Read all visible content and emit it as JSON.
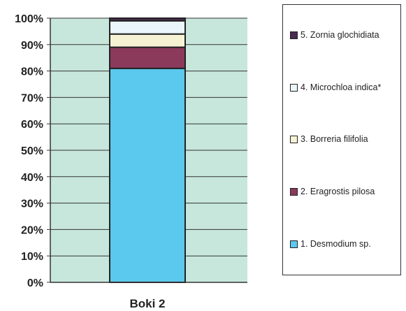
{
  "chart_data": {
    "type": "bar",
    "stacked": true,
    "categories": [
      "Boki 2"
    ],
    "yticks": [
      "0%",
      "10%",
      "20%",
      "30%",
      "40%",
      "50%",
      "60%",
      "70%",
      "80%",
      "90%",
      "100%"
    ],
    "ylim": [
      0,
      100
    ],
    "grid": true,
    "legend_position": "right",
    "series": [
      {
        "name": "1. Desmodium sp.",
        "values": [
          81
        ],
        "color": "#5bc8ee"
      },
      {
        "name": "2. Eragrostis pilosa",
        "values": [
          8
        ],
        "color": "#8b3a5c"
      },
      {
        "name": "3. Borreria filifolia",
        "values": [
          5
        ],
        "color": "#f6f3d5"
      },
      {
        "name": "4. Microchloa indica*",
        "values": [
          5
        ],
        "color": "#eaf6fb"
      },
      {
        "name": "5. Zornia glochidiata",
        "values": [
          1
        ],
        "color": "#4a2a52"
      }
    ],
    "plot_background": "#c7e7dc"
  }
}
